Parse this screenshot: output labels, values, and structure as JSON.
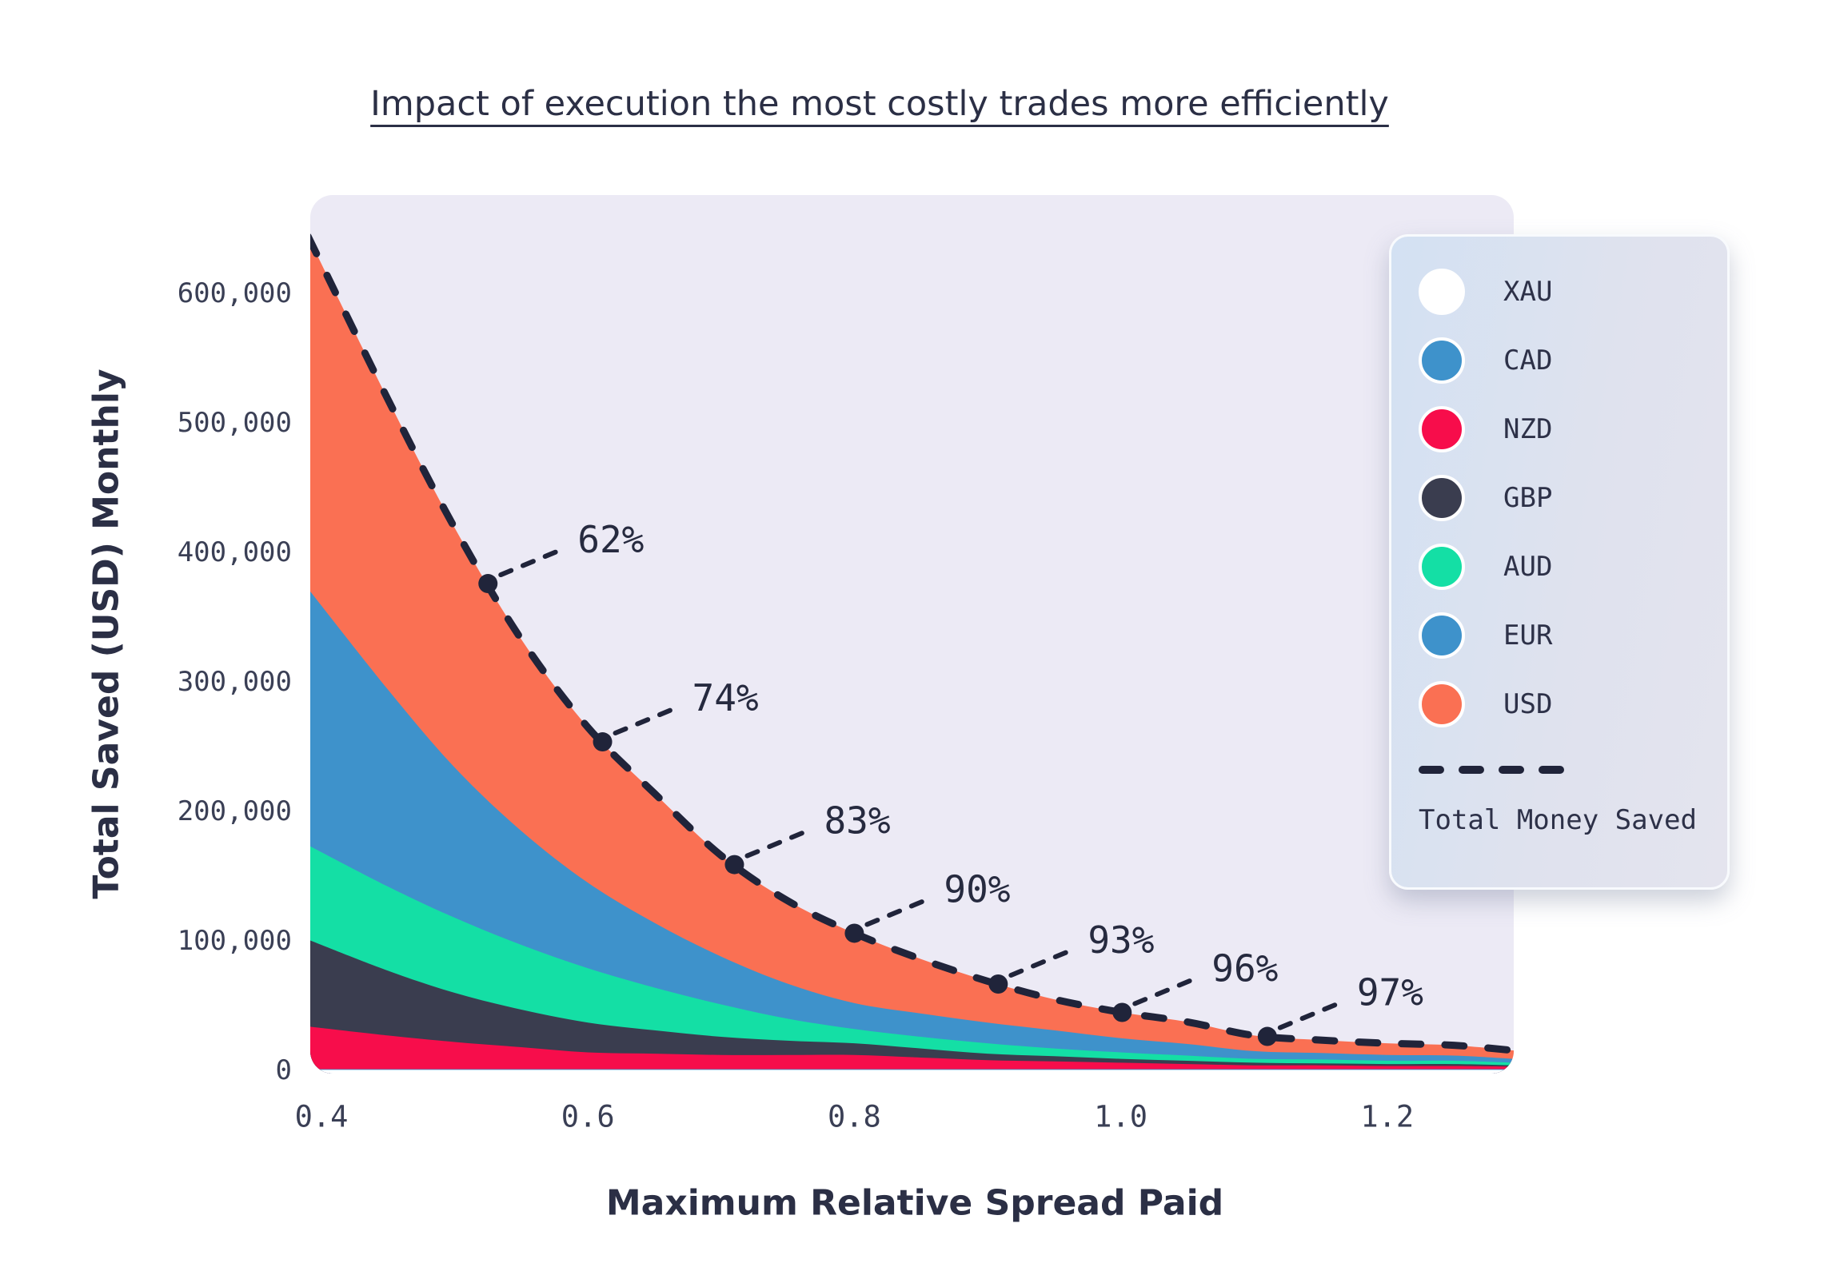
{
  "title": "Impact of execution the most costly trades more efficiently",
  "y_axis": {
    "title": "Total Saved (USD) Monthly",
    "ticks": [
      {
        "value": 0,
        "label": "0"
      },
      {
        "value": 100000,
        "label": "100,000"
      },
      {
        "value": 200000,
        "label": "200,000"
      },
      {
        "value": 300000,
        "label": "300,000"
      },
      {
        "value": 400000,
        "label": "400,000"
      },
      {
        "value": 500000,
        "label": "500,000"
      },
      {
        "value": 600000,
        "label": "600,000"
      }
    ]
  },
  "x_axis": {
    "title": "Maximum Relative Spread Paid",
    "ticks": [
      {
        "value": 0.4,
        "label": "0.4"
      },
      {
        "value": 0.6,
        "label": "0.6"
      },
      {
        "value": 0.8,
        "label": "0.8"
      },
      {
        "value": 1.0,
        "label": "1.0"
      },
      {
        "value": 1.2,
        "label": "1.2"
      }
    ]
  },
  "chart_data": {
    "type": "area",
    "stacked": true,
    "title": "Impact of execution the most costly trades more efficiently",
    "xlabel": "Maximum Relative Spread Paid",
    "ylabel": "Total Saved (USD) Monthly",
    "xlim": [
      0.39,
      1.295
    ],
    "ylim": [
      0,
      675000
    ],
    "grid": false,
    "background": "#eceaf5",
    "legend_position": "right",
    "x": [
      0.39,
      0.45,
      0.5,
      0.55,
      0.6,
      0.65,
      0.7,
      0.75,
      0.8,
      0.85,
      0.9,
      0.95,
      1.0,
      1.05,
      1.1,
      1.15,
      1.2,
      1.25,
      1.295
    ],
    "series": [
      {
        "name": "XAU",
        "color": "#ffffff",
        "values": [
          400,
          400,
          400,
          400,
          400,
          400,
          400,
          400,
          400,
          400,
          400,
          400,
          400,
          400,
          400,
          400,
          400,
          400,
          400
        ]
      },
      {
        "name": "CAD",
        "color": "#3e92cb",
        "values": [
          500,
          500,
          500,
          500,
          500,
          500,
          500,
          500,
          500,
          500,
          500,
          500,
          500,
          500,
          500,
          500,
          500,
          500,
          500
        ]
      },
      {
        "name": "NZD",
        "color": "#f70d4b",
        "values": [
          33000,
          26000,
          21000,
          17000,
          13000,
          12000,
          11000,
          11000,
          11000,
          9000,
          7000,
          6000,
          5000,
          4000,
          3000,
          3000,
          2500,
          2500,
          2000
        ]
      },
      {
        "name": "GBP",
        "color": "#3a3d4f",
        "values": [
          67000,
          50000,
          38000,
          29000,
          23000,
          18000,
          14000,
          11000,
          9000,
          7000,
          5000,
          4000,
          3000,
          2500,
          2000,
          1500,
          1500,
          1500,
          1000
        ]
      },
      {
        "name": "AUD",
        "color": "#14dfa5",
        "values": [
          73000,
          65000,
          58000,
          50000,
          42000,
          33000,
          25000,
          17000,
          11000,
          9000,
          8000,
          6000,
          5000,
          4000,
          3000,
          3000,
          2500,
          2500,
          2000
        ]
      },
      {
        "name": "EUR",
        "color": "#3e92cb",
        "values": [
          198000,
          152000,
          116000,
          88000,
          66000,
          50000,
          37000,
          27000,
          20000,
          18000,
          16000,
          14000,
          11000,
          9000,
          6000,
          5000,
          4500,
          4000,
          3000
        ]
      },
      {
        "name": "USD",
        "color": "#fa7053",
        "values": [
          272000,
          224000,
          185000,
          148000,
          120000,
          100000,
          78000,
          64000,
          54000,
          42000,
          32000,
          24000,
          20000,
          17000,
          12000,
          10000,
          9000,
          8000,
          6500
        ]
      }
    ],
    "total_line": {
      "name": "Total Money Saved",
      "color": "#20243a",
      "style": "dashed"
    },
    "annotations": [
      {
        "label": "62%",
        "x": 0.525
      },
      {
        "label": "74%",
        "x": 0.611
      },
      {
        "label": "83%",
        "x": 0.71
      },
      {
        "label": "90%",
        "x": 0.8
      },
      {
        "label": "93%",
        "x": 0.908
      },
      {
        "label": "96%",
        "x": 1.001
      },
      {
        "label": "97%",
        "x": 1.11
      }
    ]
  }
}
